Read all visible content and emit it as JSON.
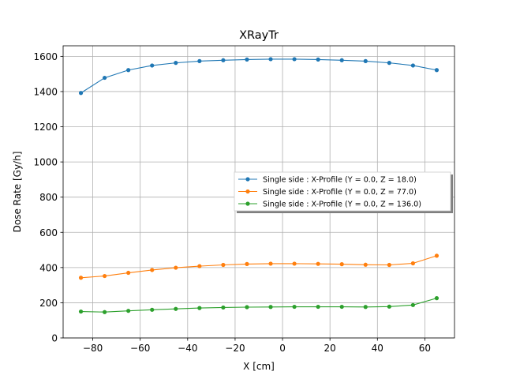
{
  "chart_data": {
    "type": "line",
    "title": "XRayTr",
    "xlabel": "X [cm]",
    "ylabel": "Dose Rate [Gy/h]",
    "xlim": [
      -92.5,
      72.5
    ],
    "ylim": [
      0,
      1660
    ],
    "xticks": [
      -80,
      -60,
      -40,
      -20,
      0,
      20,
      40,
      60
    ],
    "xtick_labels": [
      "−80",
      "−60",
      "−40",
      "−20",
      "0",
      "20",
      "40",
      "60"
    ],
    "yticks": [
      0,
      200,
      400,
      600,
      800,
      1000,
      1200,
      1400,
      1600
    ],
    "ytick_labels": [
      "0",
      "200",
      "400",
      "600",
      "800",
      "1000",
      "1200",
      "1400",
      "1600"
    ],
    "grid": true,
    "legend_position": "center-right",
    "x": [
      -85,
      -75,
      -65,
      -55,
      -45,
      -35,
      -25,
      -15,
      -5,
      5,
      15,
      25,
      35,
      45,
      55,
      65
    ],
    "series": [
      {
        "name": "Single side : X-Profile (Y = 0.0, Z = 18.0)",
        "color": "#1f77b4",
        "values": [
          1392,
          1478,
          1522,
          1548,
          1563,
          1573,
          1578,
          1582,
          1584,
          1584,
          1582,
          1578,
          1573,
          1563,
          1548,
          1522
        ]
      },
      {
        "name": "Single side : X-Profile (Y = 0.0, Z = 77.0)",
        "color": "#ff7f0e",
        "values": [
          342,
          352,
          370,
          386,
          399,
          408,
          415,
          420,
          422,
          422,
          421,
          419,
          416,
          415,
          424,
          467
        ]
      },
      {
        "name": "Single side : X-Profile (Y = 0.0, Z = 136.0)",
        "color": "#2ca02c",
        "values": [
          150,
          147,
          154,
          160,
          165,
          170,
          173,
          175,
          176,
          177,
          177,
          177,
          176,
          178,
          187,
          226
        ]
      }
    ]
  }
}
